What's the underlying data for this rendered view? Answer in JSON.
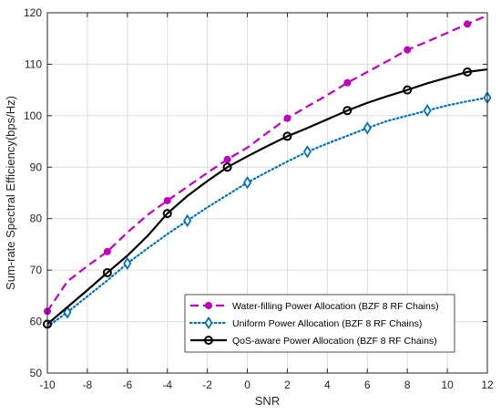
{
  "chart_data": {
    "type": "line",
    "title": "",
    "xlabel": "SNR",
    "ylabel": "Sum-rate Spectral Efficiency(bps/Hz)",
    "xlim": [
      -10,
      12
    ],
    "ylim": [
      50,
      120
    ],
    "xticks": [
      -10,
      -8,
      -6,
      -4,
      -2,
      0,
      2,
      4,
      6,
      8,
      10,
      12
    ],
    "yticks": [
      50,
      60,
      70,
      80,
      90,
      100,
      110,
      120
    ],
    "grid": true,
    "legend_position": "bottom-right",
    "series": [
      {
        "name": "Water-filling Power Allocation (BZF 8 RF Chains)",
        "color": "#bf00bf",
        "line_style": "dashed",
        "marker": "filled-circle",
        "x": [
          -10,
          -9,
          -8,
          -7,
          -6,
          -5,
          -4,
          -3,
          -2,
          -1,
          0,
          1,
          2,
          3,
          4,
          5,
          6,
          7,
          8,
          9,
          10,
          11,
          12
        ],
        "y": [
          62.0,
          67.8,
          70.8,
          73.6,
          77.3,
          80.7,
          83.5,
          86.2,
          88.9,
          91.5,
          93.8,
          96.7,
          99.5,
          101.8,
          104.0,
          106.4,
          108.5,
          110.6,
          112.8,
          114.4,
          116.1,
          117.8,
          119.5
        ],
        "marker_x": [
          -10,
          -7,
          -4,
          -1,
          2,
          5,
          8,
          11
        ]
      },
      {
        "name": "Uniform Power Allocation (BZF 8 RF Chains)",
        "color": "#0072bd",
        "line_style": "dotted",
        "marker": "diamond",
        "x": [
          -10,
          -9,
          -8,
          -7,
          -6,
          -5,
          -4,
          -3,
          -2,
          -1,
          0,
          1,
          2,
          3,
          4,
          5,
          6,
          7,
          8,
          9,
          10,
          11,
          12
        ],
        "y": [
          59.0,
          61.8,
          64.9,
          68.0,
          71.3,
          74.2,
          77.0,
          79.6,
          82.2,
          84.6,
          87.0,
          89.1,
          91.1,
          93.0,
          94.6,
          96.1,
          97.6,
          99.0,
          100.0,
          101.0,
          102.0,
          102.8,
          103.5
        ],
        "marker_x": [
          -9,
          -6,
          -3,
          0,
          3,
          6,
          9,
          12
        ]
      },
      {
        "name": "QoS-aware Power Allocation (BZF 8 RF Chains)",
        "color": "#000000",
        "line_style": "solid",
        "marker": "open-circle",
        "x": [
          -10,
          -9,
          -8,
          -7,
          -6,
          -5,
          -4,
          -3,
          -2,
          -1,
          0,
          1,
          2,
          3,
          4,
          5,
          6,
          7,
          8,
          9,
          10,
          11,
          12
        ],
        "y": [
          59.5,
          62.8,
          66.1,
          69.5,
          72.8,
          76.6,
          81.0,
          84.4,
          87.3,
          90.0,
          92.1,
          94.1,
          96.0,
          97.6,
          99.3,
          101.0,
          102.5,
          103.8,
          105.0,
          106.3,
          107.4,
          108.5,
          109.0
        ],
        "marker_x": [
          -10,
          -7,
          -4,
          -1,
          2,
          5,
          8,
          11
        ]
      }
    ]
  }
}
